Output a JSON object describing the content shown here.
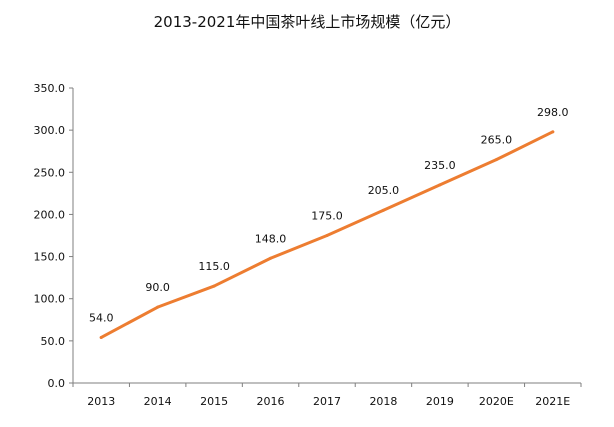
{
  "chart_data": {
    "type": "line",
    "title": "2013-2021年中国茶叶线上市场规模（亿元）",
    "xlabel": "",
    "ylabel": "",
    "categories": [
      "2013",
      "2014",
      "2015",
      "2016",
      "2017",
      "2018",
      "2019",
      "2020E",
      "2021E"
    ],
    "series": [
      {
        "values": [
          54.0,
          90.0,
          115.0,
          148.0,
          175.0,
          205.0,
          235.0,
          265.0,
          298.0
        ],
        "value_labels": [
          "54.0",
          "90.0",
          "115.0",
          "148.0",
          "175.0",
          "205.0",
          "235.0",
          "265.0",
          "298.0"
        ],
        "color": "#ed7d31"
      }
    ],
    "ylim": [
      0,
      350
    ],
    "yticks": [
      0,
      50,
      100,
      150,
      200,
      250,
      300,
      350
    ],
    "ytick_labels": [
      "0.0",
      "50.0",
      "100.0",
      "150.0",
      "200.0",
      "250.0",
      "300.0",
      "350.0"
    ],
    "grid": false,
    "axis_color": "#7f7f7f"
  }
}
